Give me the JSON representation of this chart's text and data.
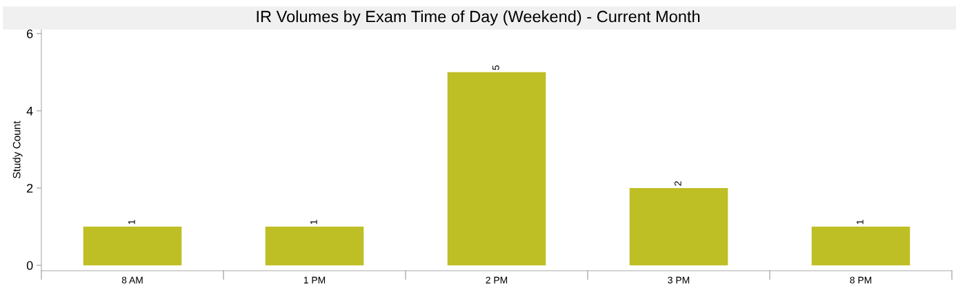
{
  "chart_data": {
    "type": "bar",
    "title": "IR Volumes by Exam Time of Day (Weekend) - Current Month",
    "ylabel": "Study Count",
    "categories": [
      "8 AM",
      "1 PM",
      "2 PM",
      "3 PM",
      "8 PM"
    ],
    "values": [
      1,
      1,
      5,
      2,
      1
    ],
    "color": "#bebe25",
    "ylim": [
      -0.14,
      6.12
    ],
    "yticks": [
      0,
      2,
      4,
      6
    ],
    "grid": false,
    "data_labels": true
  }
}
